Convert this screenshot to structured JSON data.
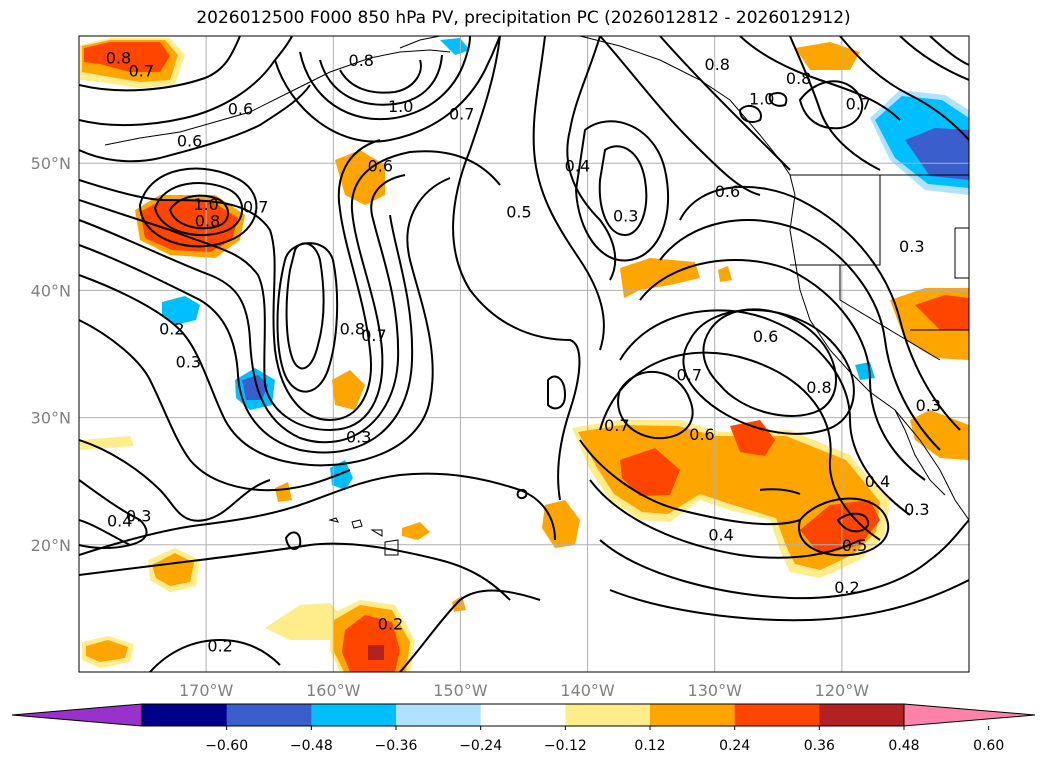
{
  "title": "2026012500 F000 850 hPa PV, precipitation PC (2026012812 - 2026012912)",
  "map": {
    "lon_range": [
      -180,
      -110
    ],
    "lat_range": [
      10,
      60
    ],
    "gridlines": true
  },
  "axes": {
    "lat_ticks": [
      {
        "value": 20,
        "label": "20°N"
      },
      {
        "value": 30,
        "label": "30°N"
      },
      {
        "value": 40,
        "label": "40°N"
      },
      {
        "value": 50,
        "label": "50°N"
      }
    ],
    "lon_ticks": [
      {
        "value": -170,
        "label": "170°W"
      },
      {
        "value": -160,
        "label": "160°W"
      },
      {
        "value": -150,
        "label": "150°W"
      },
      {
        "value": -140,
        "label": "140°W"
      },
      {
        "value": -130,
        "label": "130°W"
      },
      {
        "value": -120,
        "label": "120°W"
      }
    ]
  },
  "colorbar": {
    "extend": "both",
    "colors": [
      "#9932cc",
      "#00008b",
      "#3a5fcd",
      "#00bfff",
      "#b0e2ff",
      "#ffffff",
      "#ffec8b",
      "#ffa500",
      "#ff4500",
      "#b22222",
      "#ff82ab"
    ],
    "tick_labels": [
      "−0.60",
      "−0.48",
      "−0.36",
      "−0.24",
      "−0.12",
      "0.12",
      "0.24",
      "0.36",
      "0.48",
      "0.60"
    ]
  },
  "contour_labels": [
    {
      "text": "0.8",
      "lon": -176.9,
      "lat": 58.3
    },
    {
      "text": "0.7",
      "lon": -175.1,
      "lat": 57.3
    },
    {
      "text": "0.6",
      "lon": -167.3,
      "lat": 54.3
    },
    {
      "text": "0.6",
      "lon": -171.3,
      "lat": 51.8
    },
    {
      "text": "1.0",
      "lon": -170.0,
      "lat": 46.8
    },
    {
      "text": "0.8",
      "lon": -169.9,
      "lat": 45.5
    },
    {
      "text": "0.7",
      "lon": -166.1,
      "lat": 46.6
    },
    {
      "text": "0.2",
      "lon": -172.7,
      "lat": 37.0
    },
    {
      "text": "0.3",
      "lon": -171.4,
      "lat": 34.4
    },
    {
      "text": "0.8",
      "lon": -158.5,
      "lat": 37.0
    },
    {
      "text": "0.7",
      "lon": -156.8,
      "lat": 36.5
    },
    {
      "text": "0.3",
      "lon": -158.0,
      "lat": 28.5
    },
    {
      "text": "0.4",
      "lon": -176.8,
      "lat": 21.9
    },
    {
      "text": "0.3",
      "lon": -175.3,
      "lat": 22.3
    },
    {
      "text": "0.2",
      "lon": -168.9,
      "lat": 12.1
    },
    {
      "text": "0.8",
      "lon": -157.8,
      "lat": 58.1
    },
    {
      "text": "1.0",
      "lon": -154.7,
      "lat": 54.5
    },
    {
      "text": "0.7",
      "lon": -149.9,
      "lat": 53.9
    },
    {
      "text": "0.6",
      "lon": -156.3,
      "lat": 49.8
    },
    {
      "text": "0.5",
      "lon": -145.4,
      "lat": 46.2
    },
    {
      "text": "0.4",
      "lon": -140.8,
      "lat": 49.8
    },
    {
      "text": "0.3",
      "lon": -137.0,
      "lat": 45.9
    },
    {
      "text": "0.2",
      "lon": -155.5,
      "lat": 13.8
    },
    {
      "text": "0.8",
      "lon": -129.8,
      "lat": 57.8
    },
    {
      "text": "1.0",
      "lon": -126.3,
      "lat": 55.1
    },
    {
      "text": "0.8",
      "lon": -123.4,
      "lat": 56.7
    },
    {
      "text": "0.7",
      "lon": -118.7,
      "lat": 54.7
    },
    {
      "text": "0.6",
      "lon": -129.0,
      "lat": 47.8
    },
    {
      "text": "0.3",
      "lon": -114.5,
      "lat": 43.5
    },
    {
      "text": "0.6",
      "lon": -126.0,
      "lat": 36.4
    },
    {
      "text": "0.8",
      "lon": -121.8,
      "lat": 32.4
    },
    {
      "text": "0.7",
      "lon": -132.0,
      "lat": 33.4
    },
    {
      "text": "0.7",
      "lon": -137.7,
      "lat": 29.4
    },
    {
      "text": "0.6",
      "lon": -131.0,
      "lat": 28.7
    },
    {
      "text": "0.4",
      "lon": -129.5,
      "lat": 20.8
    },
    {
      "text": "0.5",
      "lon": -119.0,
      "lat": 20.0
    },
    {
      "text": "0.4",
      "lon": -117.2,
      "lat": 25.0
    },
    {
      "text": "0.3",
      "lon": -114.1,
      "lat": 22.8
    },
    {
      "text": "0.2",
      "lon": -119.6,
      "lat": 16.7
    },
    {
      "text": "0.3",
      "lon": -113.2,
      "lat": 31.0
    }
  ]
}
